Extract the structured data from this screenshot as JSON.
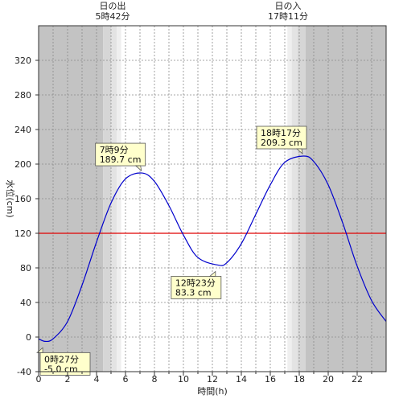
{
  "chart_data": {
    "type": "line",
    "xlabel": "時間(h)",
    "ylabel": "水位(cm)",
    "xlim": [
      0,
      24
    ],
    "ylim": [
      -40,
      360
    ],
    "x_ticks": [
      0,
      2,
      4,
      6,
      8,
      10,
      12,
      14,
      16,
      18,
      20,
      22
    ],
    "y_ticks": [
      -40,
      0,
      40,
      80,
      120,
      160,
      200,
      240,
      280,
      320
    ],
    "reference_line": {
      "y": 120,
      "color": "#e00000"
    },
    "line_color": "#0000cc",
    "sunrise": {
      "label": "日の出",
      "time": "5時42分",
      "hour": 5.7
    },
    "sunset": {
      "label": "日の入",
      "time": "17時11分",
      "hour": 17.18
    },
    "series": [
      {
        "x": [
          0,
          0.45,
          1,
          2,
          3,
          4,
          5,
          6,
          7.15,
          8,
          9,
          10,
          11,
          12.38,
          13,
          14,
          15,
          16,
          17,
          18.28,
          19,
          20,
          21,
          22,
          23,
          24
        ],
        "y": [
          -2,
          -5,
          -2,
          18,
          60,
          110,
          155,
          183,
          189.7,
          180,
          152,
          118,
          92,
          83.3,
          86,
          108,
          142,
          176,
          202,
          209.3,
          203,
          176,
          132,
          82,
          42,
          18
        ]
      }
    ],
    "annotations": [
      {
        "time": "7時9分",
        "value": "189.7 cm",
        "x": 7.15,
        "y": 189.7,
        "side": "above"
      },
      {
        "time": "12時23分",
        "value": "83.3 cm",
        "x": 12.38,
        "y": 83.3,
        "side": "below"
      },
      {
        "time": "18時17分",
        "value": "209.3 cm",
        "x": 18.28,
        "y": 209.3,
        "side": "above"
      },
      {
        "time": "0時27分",
        "value": "-5.0 cm",
        "x": 0.45,
        "y": -5.0,
        "side": "below"
      }
    ]
  }
}
